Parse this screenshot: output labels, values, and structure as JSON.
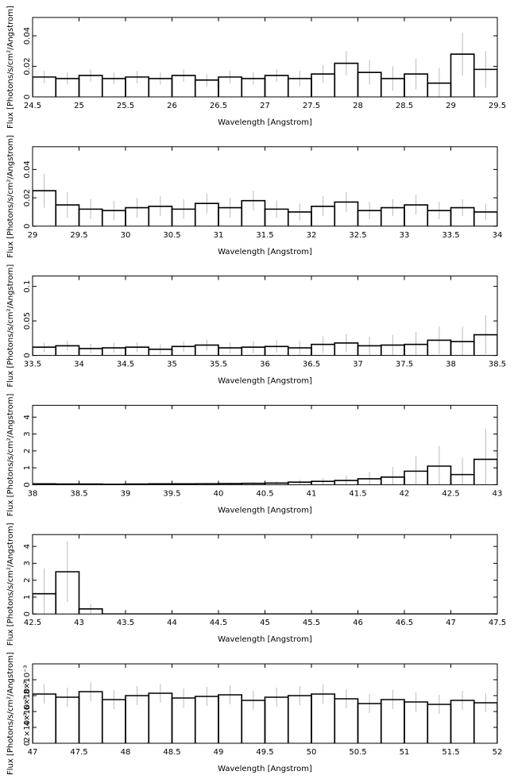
{
  "chart_data": [
    {
      "type": "histogram",
      "xlabel": "Wavelength [Angstrom]",
      "ylabel": "Flux [Photons/s/cm²/Angstrom]",
      "bins": [
        24.5,
        24.75,
        25,
        25.25,
        25.5,
        25.75,
        26,
        26.25,
        26.5,
        26.75,
        27,
        27.25,
        27.5,
        27.75,
        28,
        28.25,
        28.5,
        28.75,
        29,
        29.25,
        29.5
      ],
      "values": [
        0.013,
        0.012,
        0.014,
        0.012,
        0.013,
        0.012,
        0.014,
        0.011,
        0.013,
        0.012,
        0.014,
        0.012,
        0.015,
        0.022,
        0.016,
        0.012,
        0.015,
        0.009,
        0.028,
        0.018
      ],
      "errors": [
        0.004,
        0.004,
        0.004,
        0.004,
        0.004,
        0.004,
        0.004,
        0.004,
        0.004,
        0.004,
        0.004,
        0.005,
        0.006,
        0.008,
        0.008,
        0.008,
        0.01,
        0.01,
        0.014,
        0.012
      ],
      "color": "#000000",
      "error_color": "#bbbbbb",
      "xlim": [
        24.5,
        29.5
      ],
      "xticks": [
        24.5,
        25,
        25.5,
        26,
        26.5,
        27,
        27.5,
        28,
        28.5,
        29,
        29.5
      ],
      "ylim": [
        0,
        0.052
      ],
      "yticks": [
        0,
        0.02,
        0.04
      ]
    },
    {
      "type": "histogram",
      "xlabel": "Wavelength [Angstrom]",
      "ylabel": "Flux [Photons/s/cm²/Angstrom]",
      "bins": [
        29,
        29.25,
        29.5,
        29.75,
        30,
        30.25,
        30.5,
        30.75,
        31,
        31.25,
        31.5,
        31.75,
        32,
        32.25,
        32.5,
        32.75,
        33,
        33.25,
        33.5,
        33.75,
        34
      ],
      "values": [
        0.025,
        0.015,
        0.012,
        0.011,
        0.013,
        0.014,
        0.012,
        0.016,
        0.013,
        0.018,
        0.012,
        0.01,
        0.014,
        0.017,
        0.011,
        0.013,
        0.015,
        0.011,
        0.013,
        0.01
      ],
      "errors": [
        0.012,
        0.009,
        0.007,
        0.007,
        0.007,
        0.007,
        0.007,
        0.007,
        0.007,
        0.007,
        0.006,
        0.006,
        0.007,
        0.007,
        0.006,
        0.006,
        0.007,
        0.006,
        0.006,
        0.006
      ],
      "color": "#000000",
      "error_color": "#bbbbbb",
      "xlim": [
        29,
        34
      ],
      "xticks": [
        29,
        29.5,
        30,
        30.5,
        31,
        31.5,
        32,
        32.5,
        33,
        33.5,
        34
      ],
      "ylim": [
        0,
        0.056
      ],
      "yticks": [
        0,
        0.02,
        0.04
      ]
    },
    {
      "type": "histogram",
      "xlabel": "Wavelength [Angstrom]",
      "ylabel": "Flux [Photons/s/cm²/Angstrom]",
      "bins": [
        33.5,
        33.75,
        34,
        34.25,
        34.5,
        34.75,
        35,
        35.25,
        35.5,
        35.75,
        36,
        36.25,
        36.5,
        36.75,
        37,
        37.25,
        37.5,
        37.75,
        38,
        38.25,
        38.5
      ],
      "values": [
        0.012,
        0.014,
        0.01,
        0.011,
        0.012,
        0.009,
        0.013,
        0.015,
        0.011,
        0.012,
        0.013,
        0.011,
        0.016,
        0.018,
        0.014,
        0.015,
        0.016,
        0.022,
        0.02,
        0.03
      ],
      "errors": [
        0.007,
        0.007,
        0.007,
        0.007,
        0.007,
        0.007,
        0.008,
        0.008,
        0.008,
        0.009,
        0.009,
        0.01,
        0.012,
        0.013,
        0.013,
        0.015,
        0.018,
        0.02,
        0.022,
        0.028
      ],
      "color": "#000000",
      "error_color": "#bbbbbb",
      "xlim": [
        33.5,
        38.5
      ],
      "xticks": [
        33.5,
        34,
        34.5,
        35,
        35.5,
        36,
        36.5,
        37,
        37.5,
        38,
        38.5
      ],
      "ylim": [
        0,
        0.115
      ],
      "yticks": [
        0,
        0.05,
        0.1
      ]
    },
    {
      "type": "histogram",
      "xlabel": "Wavelength [Angstrom]",
      "ylabel": "Flux [Photons/s/cm²/Angstrom]",
      "bins": [
        38,
        38.25,
        38.5,
        38.75,
        39,
        39.25,
        39.5,
        39.75,
        40,
        40.25,
        40.5,
        40.75,
        41,
        41.25,
        41.5,
        41.75,
        42,
        42.25,
        42.5,
        42.75,
        43
      ],
      "values": [
        0.05,
        0.04,
        0.04,
        0.03,
        0.04,
        0.05,
        0.05,
        0.06,
        0.07,
        0.08,
        0.1,
        0.15,
        0.2,
        0.25,
        0.35,
        0.45,
        0.8,
        1.1,
        0.6,
        1.5
      ],
      "errors": [
        0.03,
        0.03,
        0.03,
        0.03,
        0.04,
        0.04,
        0.04,
        0.05,
        0.06,
        0.07,
        0.1,
        0.15,
        0.2,
        0.3,
        0.4,
        0.6,
        0.9,
        1.2,
        1.0,
        1.8
      ],
      "color": "#000000",
      "error_color": "#bbbbbb",
      "xlim": [
        38,
        43
      ],
      "xticks": [
        38,
        38.5,
        39,
        39.5,
        40,
        40.5,
        41,
        41.5,
        42,
        42.5,
        43
      ],
      "ylim": [
        0,
        4.7
      ],
      "yticks": [
        0,
        1,
        2,
        3,
        4
      ]
    },
    {
      "type": "histogram",
      "xlabel": "Wavelength [Angstrom]",
      "ylabel": "Flux [Photons/s/cm²/Angstrom]",
      "bins": [
        42.5,
        42.75,
        43,
        43.25,
        43.5,
        43.75,
        44,
        44.25,
        44.5,
        44.75,
        45,
        45.25,
        45.5,
        45.75,
        46,
        46.25,
        46.5,
        46.75,
        47,
        47.25,
        47.5
      ],
      "values": [
        1.2,
        2.5,
        0.3,
        0,
        0,
        0,
        0,
        0,
        0,
        0,
        0,
        0,
        0,
        0,
        0,
        0,
        0,
        0,
        0,
        0
      ],
      "errors": [
        1.5,
        1.8,
        0.3,
        0,
        0,
        0,
        0,
        0,
        0,
        0,
        0,
        0,
        0,
        0,
        0,
        0,
        0,
        0,
        0,
        0
      ],
      "color": "#000000",
      "error_color": "#bbbbbb",
      "xlim": [
        42.5,
        47.5
      ],
      "xticks": [
        42.5,
        43,
        43.5,
        44,
        44.5,
        45,
        45.5,
        46,
        46.5,
        47,
        47.5
      ],
      "ylim": [
        0,
        4.7
      ],
      "yticks": [
        0,
        1,
        2,
        3,
        4
      ]
    },
    {
      "type": "histogram",
      "xlabel": "Wavelength [Angstrom]",
      "ylabel": "Flux [Photons/s/cm²/Angstrom]",
      "bins": [
        47,
        47.25,
        47.5,
        47.75,
        48,
        48.25,
        48.5,
        48.75,
        49,
        49.25,
        49.5,
        49.75,
        50,
        50.25,
        50.5,
        50.75,
        51,
        51.25,
        51.5,
        51.75,
        52
      ],
      "values": [
        0.0062,
        0.0058,
        0.0065,
        0.0055,
        0.006,
        0.0063,
        0.0057,
        0.0059,
        0.0061,
        0.0054,
        0.0058,
        0.006,
        0.0062,
        0.0056,
        0.005,
        0.0055,
        0.0052,
        0.0049,
        0.0054,
        0.0051
      ],
      "errors": [
        0.0012,
        0.0012,
        0.0012,
        0.0012,
        0.0012,
        0.0012,
        0.0012,
        0.0012,
        0.0012,
        0.0012,
        0.0012,
        0.0012,
        0.0012,
        0.0012,
        0.0012,
        0.0012,
        0.0012,
        0.0012,
        0.0012,
        0.0012
      ],
      "color": "#000000",
      "error_color": "#bbbbbb",
      "xlim": [
        47,
        52
      ],
      "xticks": [
        47,
        47.5,
        48,
        48.5,
        49,
        49.5,
        50,
        50.5,
        51,
        51.5,
        52
      ],
      "ylim": [
        0,
        0.01
      ],
      "yticks": [
        0,
        {
          "value": 0.002,
          "label": "2×10⁻³"
        },
        {
          "value": 0.004,
          "label": "4×10⁻³"
        },
        {
          "value": 0.006,
          "label": "6×10⁻³"
        },
        {
          "value": 0.008,
          "label": "8×10⁻³"
        }
      ]
    }
  ]
}
